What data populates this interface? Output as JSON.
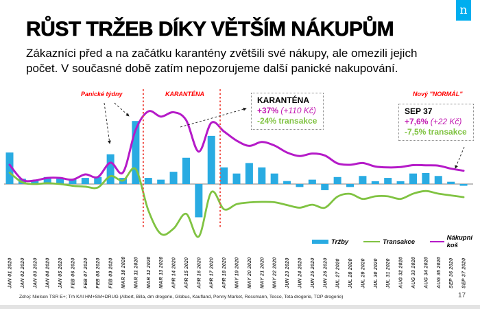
{
  "slide": {
    "title": "RŮST TRŽEB DÍKY VĚTŠÍM NÁKUPŮM",
    "subtitle_line1": "Zákazníci před a na začátku karantény zvětšili své nákupy, ale omezili jejich",
    "subtitle_line2": "počet. V současné době zatím nepozorujeme další panické nakupování.",
    "logo_letter": "n",
    "page_number": "17",
    "source": "Zdroj: Nielsen TSR E+; Trh KAI HM+SM+DRUG (Albert, Billa, dm drogerie, Globus, Kaufland, Penny Market, Rossmann, Tesco, Teta drogerie, TOP drogerie)"
  },
  "annotations": {
    "panic_label": "Panické týdny",
    "quarantine_label": "KARANTÉNA",
    "new_normal_label": "Nový \"NORMÁL\"",
    "quarantine_box": {
      "title": "KARANTÉNA",
      "basket_pct": "+37%",
      "basket_czk": " (+110 Kč)",
      "transactions": "-24% transakce"
    },
    "sep_box": {
      "title": "SEP 37",
      "basket_pct": "+7,6%",
      "basket_czk": " (+22 Kč)",
      "transactions": "-7,5% transakce"
    }
  },
  "legend": [
    {
      "label": "Tržby"
    },
    {
      "label": "Transakce"
    },
    {
      "label": "Nákupní koš"
    }
  ],
  "colors": {
    "bars": "#29ABE2",
    "transactions": "#80C342",
    "basket": "#B51AC8",
    "accent_red": "#FF0000",
    "quarantine_line": "#F0524A",
    "annotation_magenta": "#C21CB2",
    "logo_blue": "#00AEEF",
    "axis_gray": "#A8A8A8",
    "tick_label": "#333333"
  },
  "chart_data": {
    "type": "combo bar+line",
    "unit": "% growth vs. year ago (no visible y-axis)",
    "legend_position": "bottom-right",
    "grid": false,
    "categories": [
      "JAN 01 2020",
      "JAN 02 2020",
      "JAN 03 2020",
      "JAN 04 2020",
      "JAN 05 2020",
      "FEB 06 2020",
      "FEB 07 2020",
      "FEB 08 2020",
      "FEB 09 2020",
      "MAR 10 2020",
      "MAR 11 2020",
      "MAR 12 2020",
      "MAR 13 2020",
      "APR 14 2020",
      "APR 15 2020",
      "APR 16 2020",
      "APR 17 2020",
      "APR 18 2020",
      "MAY 19 2020",
      "MAY 20 2020",
      "MAY 21 2020",
      "MAY 22 2020",
      "JUN 23 2020",
      "JUN 24 2020",
      "JUN 25 2020",
      "JUN 26 2020",
      "JUL 27 2020",
      "JUL 28 2020",
      "JUL 29 2020",
      "JUL 30 2020",
      "JUL 31 2020",
      "AUG 32 2020",
      "AUG 33 2020",
      "AUG 34 2020",
      "AUG 35 2020",
      "SEP 36 2020",
      "SEP 37 2020"
    ],
    "series": [
      {
        "name": "Tržby",
        "type": "bar",
        "values": [
          18,
          3,
          2,
          4,
          3,
          3,
          3.5,
          4,
          17,
          3.5,
          36,
          3.5,
          2.5,
          7,
          15,
          -19,
          27.5,
          9.5,
          6,
          12,
          9.5,
          6,
          1.7,
          -1.7,
          2.5,
          -3.5,
          4,
          -1.7,
          4.6,
          1.6,
          3.5,
          1.6,
          6,
          6.3,
          4.6,
          1.3,
          -1
        ]
      },
      {
        "name": "Transakce",
        "type": "line",
        "values": [
          6.5,
          1,
          0,
          0.5,
          0,
          -1,
          -1.5,
          -2,
          4.5,
          2,
          8.5,
          -15,
          -28.5,
          -25.5,
          -17,
          -30,
          -4.6,
          -14.4,
          -11.5,
          -10.5,
          -10.2,
          -10.4,
          -12,
          -13.5,
          -11.8,
          -13.5,
          -7.2,
          -5.6,
          -8.5,
          -7,
          -7,
          -8.5,
          -5.5,
          -4,
          -5.5,
          -6.5,
          -7.5
        ]
      },
      {
        "name": "Nákupní koš",
        "type": "line",
        "values": [
          11,
          2.5,
          2,
          3.5,
          3.5,
          2.5,
          5.5,
          4,
          12.2,
          6.7,
          31,
          41.5,
          38.5,
          41,
          36.5,
          18.5,
          35,
          30,
          24.8,
          21.8,
          24,
          22,
          18,
          16,
          17.4,
          16.3,
          11.8,
          11,
          12,
          10,
          9.5,
          9.7,
          10.8,
          10.7,
          10.5,
          8.8,
          7.6
        ]
      }
    ],
    "dashed_vertical_lines_week_index": [
      10.6,
      16.7
    ],
    "quarantine_period": "MAR 12 2020 – APR 17 2020"
  }
}
